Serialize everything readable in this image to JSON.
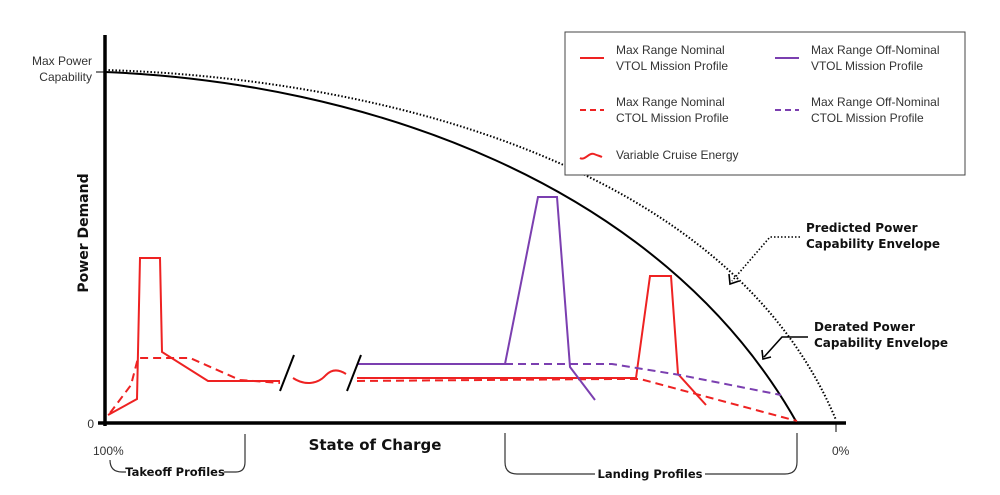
{
  "chart_data": {
    "type": "line",
    "title": "",
    "xlabel": "State of Charge",
    "ylabel": "Power Demand",
    "x_ticks": {
      "start": "100%",
      "end": "0%"
    },
    "y_ticks": {
      "zero": "0",
      "max_line1": "Max Power",
      "max_line2": "Capability"
    },
    "legend": [
      {
        "line1": "Max Range Nominal",
        "line2": "VTOL Mission Profile",
        "color": "#ee2222",
        "style": "solid"
      },
      {
        "line1": "Max Range Off-Nominal",
        "line2": "VTOL Mission Profile",
        "color": "#7b3fb0",
        "style": "solid"
      },
      {
        "line1": "Max Range Nominal",
        "line2": "CTOL Mission Profile",
        "color": "#ee2222",
        "style": "dashed"
      },
      {
        "line1": "Max Range Off-Nominal",
        "line2": "CTOL Mission Profile",
        "color": "#7b3fb0",
        "style": "dashed"
      },
      {
        "line1": "Variable Cruise Energy",
        "line2": "",
        "color": "#ee2222",
        "style": "wavy"
      }
    ],
    "annotations": {
      "predicted": {
        "line1": "Predicted Power",
        "line2": "Capability Envelope"
      },
      "derated": {
        "line1": "Derated Power",
        "line2": "Capability Envelope"
      },
      "takeoff": "Takeoff Profiles",
      "landing": "Landing Profiles"
    }
  }
}
